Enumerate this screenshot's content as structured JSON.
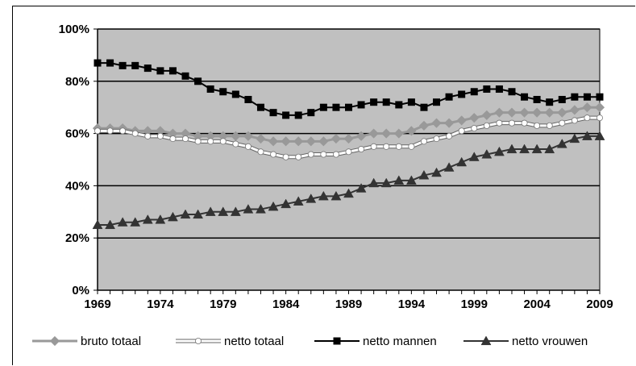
{
  "chart_data": {
    "type": "line",
    "title": "",
    "xlabel": "",
    "ylabel": "",
    "xlim": [
      1969,
      2009
    ],
    "ylim": [
      0,
      100
    ],
    "y_unit": "%",
    "x_ticks": [
      "1969",
      "1974",
      "1979",
      "1984",
      "1989",
      "1994",
      "1999",
      "2004",
      "2009"
    ],
    "y_ticks": [
      "0%",
      "20%",
      "40%",
      "60%",
      "80%",
      "100%"
    ],
    "grid": "horizontal",
    "plot_background": "#c0c0c0",
    "legend_position": "bottom",
    "x": [
      1969,
      1970,
      1971,
      1972,
      1973,
      1974,
      1975,
      1976,
      1977,
      1978,
      1979,
      1980,
      1981,
      1982,
      1983,
      1984,
      1985,
      1986,
      1987,
      1988,
      1989,
      1990,
      1991,
      1992,
      1993,
      1994,
      1995,
      1996,
      1997,
      1998,
      1999,
      2000,
      2001,
      2002,
      2003,
      2004,
      2005,
      2006,
      2007,
      2008,
      2009
    ],
    "series": [
      {
        "name": "bruto totaal",
        "marker": "diamond",
        "color": "#999999",
        "values": [
          62,
          62,
          62,
          61,
          61,
          61,
          60,
          60,
          59,
          59,
          59,
          59,
          59,
          58,
          57,
          57,
          57,
          57,
          57,
          58,
          58,
          59,
          60,
          60,
          60,
          61,
          63,
          64,
          64,
          65,
          66,
          67,
          68,
          68,
          68,
          68,
          68,
          68,
          69,
          70,
          70
        ]
      },
      {
        "name": "netto totaal",
        "marker": "circle",
        "color": "#ffffff",
        "values": [
          61,
          61,
          61,
          60,
          59,
          59,
          58,
          58,
          57,
          57,
          57,
          56,
          55,
          53,
          52,
          51,
          51,
          52,
          52,
          52,
          53,
          54,
          55,
          55,
          55,
          55,
          57,
          58,
          59,
          61,
          62,
          63,
          64,
          64,
          64,
          63,
          63,
          64,
          65,
          66,
          66
        ]
      },
      {
        "name": "netto mannen",
        "marker": "square",
        "color": "#000000",
        "values": [
          87,
          87,
          86,
          86,
          85,
          84,
          84,
          82,
          80,
          77,
          76,
          75,
          73,
          70,
          68,
          67,
          67,
          68,
          70,
          70,
          70,
          71,
          72,
          72,
          71,
          72,
          70,
          72,
          74,
          75,
          76,
          77,
          77,
          76,
          74,
          73,
          72,
          73,
          74,
          74,
          74
        ]
      },
      {
        "name": "netto vrouwen",
        "marker": "triangle",
        "color": "#333333",
        "values": [
          25,
          25,
          26,
          26,
          27,
          27,
          28,
          29,
          29,
          30,
          30,
          30,
          31,
          31,
          32,
          33,
          34,
          35,
          36,
          36,
          37,
          39,
          41,
          41,
          42,
          42,
          44,
          45,
          47,
          49,
          51,
          52,
          53,
          54,
          54,
          54,
          54,
          56,
          58,
          59,
          59
        ]
      }
    ]
  }
}
